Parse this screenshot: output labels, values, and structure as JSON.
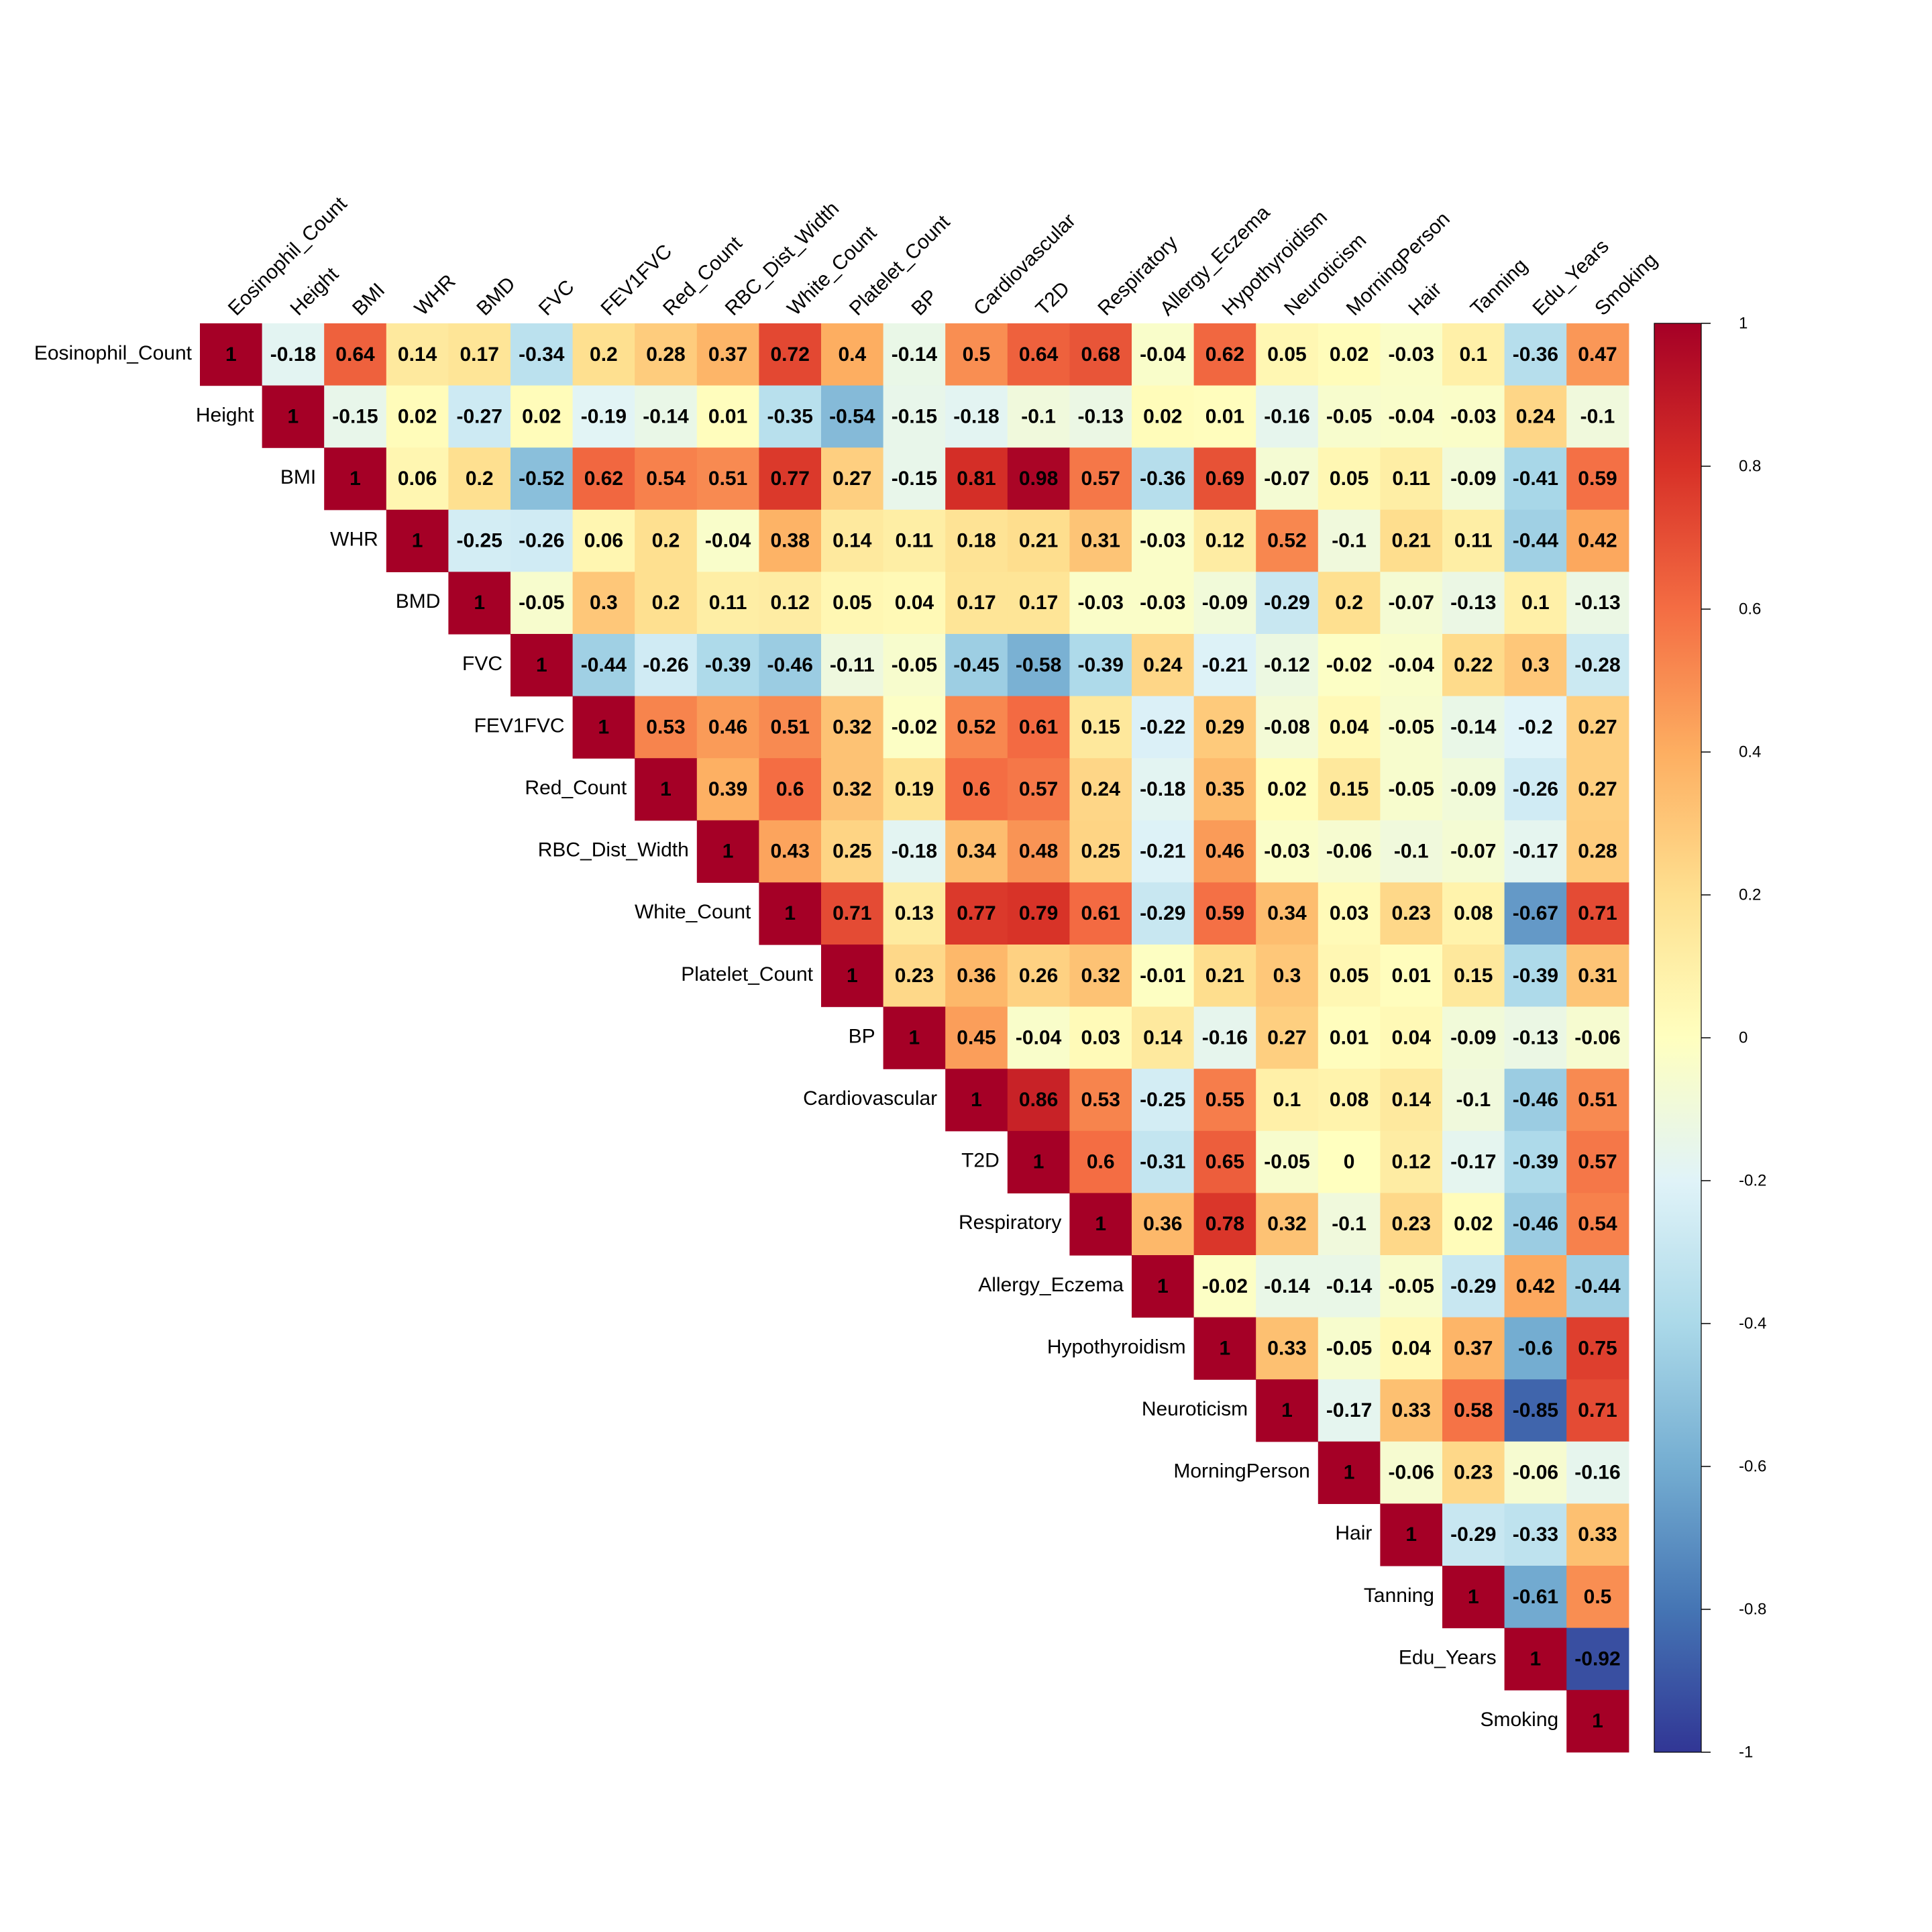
{
  "chart_data": {
    "type": "heatmap",
    "variables": [
      "Eosinophil_Count",
      "Height",
      "BMI",
      "WHR",
      "BMD",
      "FVC",
      "FEV1FVC",
      "Red_Count",
      "RBC_Dist_Width",
      "White_Count",
      "Platelet_Count",
      "BP",
      "Cardiovascular",
      "T2D",
      "Respiratory",
      "Allergy_Eczema",
      "Hypothyroidism",
      "Neuroticism",
      "MorningPerson",
      "Hair",
      "Tanning",
      "Edu_Years",
      "Smoking"
    ],
    "matrix_form": "upper-triangle",
    "rows": [
      [
        "1",
        "-0.18",
        "0.64",
        "0.14",
        "0.17",
        "-0.34",
        "0.2",
        "0.28",
        "0.37",
        "0.72",
        "0.4",
        "-0.14",
        "0.5",
        "0.64",
        "0.68",
        "-0.04",
        "0.62",
        "0.05",
        "0.02",
        "-0.03",
        "0.1",
        "-0.36",
        "0.47"
      ],
      [
        "1",
        "-0.15",
        "0.02",
        "-0.27",
        "0.02",
        "-0.19",
        "-0.14",
        "0.01",
        "-0.35",
        "-0.54",
        "-0.15",
        "-0.18",
        "-0.1",
        "-0.13",
        "0.02",
        "0.01",
        "-0.16",
        "-0.05",
        "-0.04",
        "-0.03",
        "0.24",
        "-0.1"
      ],
      [
        "1",
        "0.06",
        "0.2",
        "-0.52",
        "0.62",
        "0.54",
        "0.51",
        "0.77",
        "0.27",
        "-0.15",
        "0.81",
        "0.98",
        "0.57",
        "-0.36",
        "0.69",
        "-0.07",
        "0.05",
        "0.11",
        "-0.09",
        "-0.41",
        "0.59"
      ],
      [
        "1",
        "-0.25",
        "-0.26",
        "0.06",
        "0.2",
        "-0.04",
        "0.38",
        "0.14",
        "0.11",
        "0.18",
        "0.21",
        "0.31",
        "-0.03",
        "0.12",
        "0.52",
        "-0.1",
        "0.21",
        "0.11",
        "-0.44",
        "0.42"
      ],
      [
        "1",
        "-0.05",
        "0.3",
        "0.2",
        "0.11",
        "0.12",
        "0.05",
        "0.04",
        "0.17",
        "0.17",
        "-0.03",
        "-0.03",
        "-0.09",
        "-0.29",
        "0.2",
        "-0.07",
        "-0.13",
        "0.1",
        "-0.13"
      ],
      [
        "1",
        "-0.44",
        "-0.26",
        "-0.39",
        "-0.46",
        "-0.11",
        "-0.05",
        "-0.45",
        "-0.58",
        "-0.39",
        "0.24",
        "-0.21",
        "-0.12",
        "-0.02",
        "-0.04",
        "0.22",
        "0.3",
        "-0.28"
      ],
      [
        "1",
        "0.53",
        "0.46",
        "0.51",
        "0.32",
        "-0.02",
        "0.52",
        "0.61",
        "0.15",
        "-0.22",
        "0.29",
        "-0.08",
        "0.04",
        "-0.05",
        "-0.14",
        "-0.2",
        "0.27"
      ],
      [
        "1",
        "0.39",
        "0.6",
        "0.32",
        "0.19",
        "0.6",
        "0.57",
        "0.24",
        "-0.18",
        "0.35",
        "0.02",
        "0.15",
        "-0.05",
        "-0.09",
        "-0.26",
        "0.27"
      ],
      [
        "1",
        "0.43",
        "0.25",
        "-0.18",
        "0.34",
        "0.48",
        "0.25",
        "-0.21",
        "0.46",
        "-0.03",
        "-0.06",
        "-0.1",
        "-0.07",
        "-0.17",
        "0.28"
      ],
      [
        "1",
        "0.71",
        "0.13",
        "0.77",
        "0.79",
        "0.61",
        "-0.29",
        "0.59",
        "0.34",
        "0.03",
        "0.23",
        "0.08",
        "-0.67",
        "0.71"
      ],
      [
        "1",
        "0.23",
        "0.36",
        "0.26",
        "0.32",
        "-0.01",
        "0.21",
        "0.3",
        "0.05",
        "0.01",
        "0.15",
        "-0.39",
        "0.31"
      ],
      [
        "1",
        "0.45",
        "-0.04",
        "0.03",
        "0.14",
        "-0.16",
        "0.27",
        "0.01",
        "0.04",
        "-0.09",
        "-0.13",
        "-0.06"
      ],
      [
        "1",
        "0.86",
        "0.53",
        "-0.25",
        "0.55",
        "0.1",
        "0.08",
        "0.14",
        "-0.1",
        "-0.46",
        "0.51"
      ],
      [
        "1",
        "0.6",
        "-0.31",
        "0.65",
        "-0.05",
        "0",
        "0.12",
        "-0.17",
        "-0.39",
        "0.57"
      ],
      [
        "1",
        "0.36",
        "0.78",
        "0.32",
        "-0.1",
        "0.23",
        "0.02",
        "-0.46",
        "0.54"
      ],
      [
        "1",
        "-0.02",
        "-0.14",
        "-0.14",
        "-0.05",
        "-0.29",
        "0.42",
        "-0.44"
      ],
      [
        "1",
        "0.33",
        "-0.05",
        "0.04",
        "0.37",
        "-0.6",
        "0.75"
      ],
      [
        "1",
        "-0.17",
        "0.33",
        "0.58",
        "-0.85",
        "0.71"
      ],
      [
        "1",
        "-0.06",
        "0.23",
        "-0.06",
        "-0.16"
      ],
      [
        "1",
        "-0.29",
        "-0.33",
        "0.33"
      ],
      [
        "1",
        "-0.61",
        "0.5"
      ],
      [
        "1",
        "-0.92"
      ],
      [
        "1"
      ]
    ],
    "colorbar": {
      "range": [
        -1,
        1
      ],
      "ticks": [
        "1",
        "0.8",
        "0.6",
        "0.4",
        "0.2",
        "0",
        "-0.2",
        "-0.4",
        "-0.6",
        "-0.8",
        "-1"
      ],
      "colors": [
        "#313695",
        "#4575b4",
        "#74add1",
        "#abd9e9",
        "#e0f3f8",
        "#ffffbf",
        "#fee090",
        "#fdae61",
        "#f46d43",
        "#d73027",
        "#a50026"
      ]
    }
  }
}
